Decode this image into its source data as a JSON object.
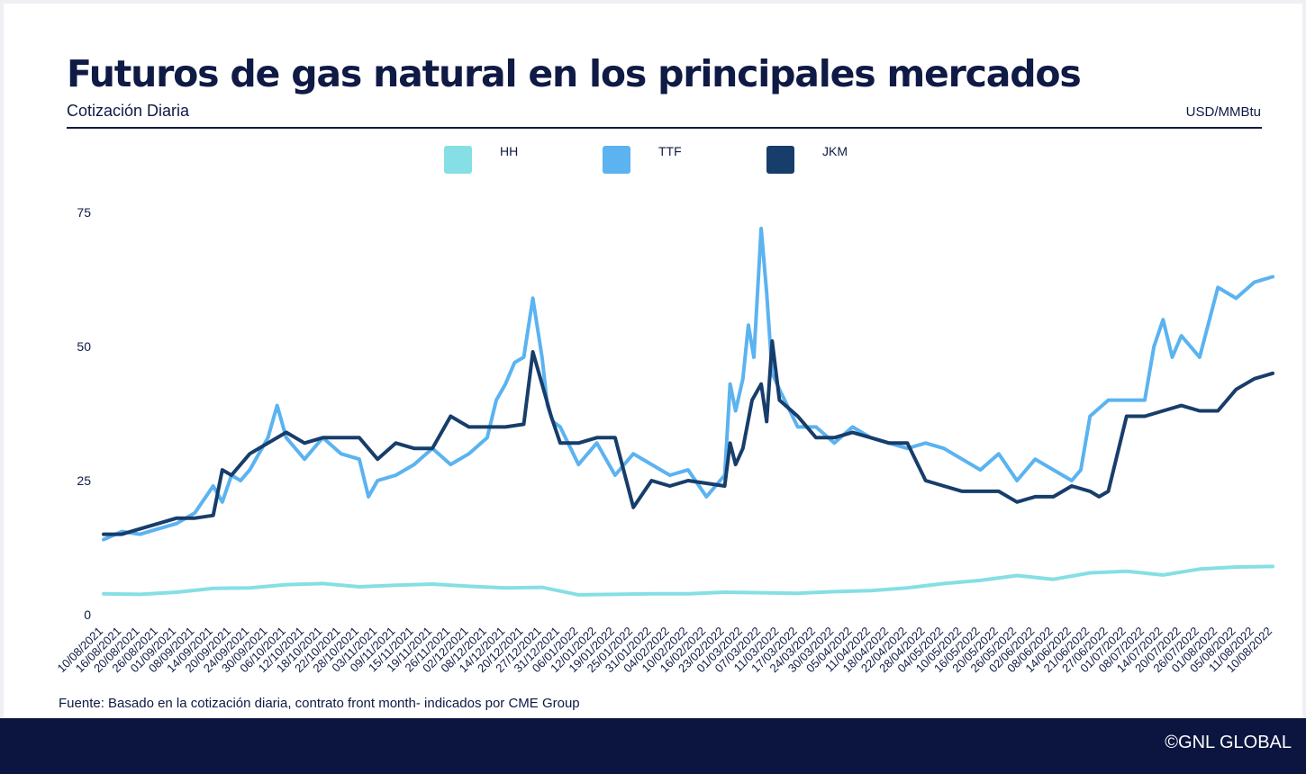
{
  "chart_data": {
    "type": "line",
    "title": "Futuros de gas natural en los principales mercados",
    "subtitle": "Cotización Diaria",
    "xlabel": "",
    "ylabel": "USD/MMBtu",
    "ylim": [
      0,
      75
    ],
    "yticks": [
      0,
      25,
      50,
      75
    ],
    "grid": false,
    "legend": "top-center",
    "x_ticks": [
      "10/08/2021",
      "16/08/2021",
      "20/08/2021",
      "26/08/2021",
      "01/09/2021",
      "08/09/2021",
      "14/09/2021",
      "20/09/2021",
      "24/09/2021",
      "30/09/2021",
      "06/10/2021",
      "12/10/2021",
      "18/10/2021",
      "22/10/2021",
      "28/10/2021",
      "03/11/2021",
      "09/11/2021",
      "15/11/2021",
      "19/11/2021",
      "26/11/2021",
      "02/12/2021",
      "08/12/2021",
      "14/12/2021",
      "20/12/2021",
      "27/12/2021",
      "31/12/2021",
      "06/01/2022",
      "12/01/2022",
      "19/01/2022",
      "25/01/2022",
      "31/01/2022",
      "04/02/2022",
      "10/02/2022",
      "16/02/2022",
      "23/02/2022",
      "01/03/2022",
      "07/03/2022",
      "11/03/2022",
      "17/03/2022",
      "24/03/2022",
      "30/03/2022",
      "05/04/2022",
      "11/04/2022",
      "18/04/2022",
      "22/04/2022",
      "28/04/2022",
      "04/05/2022",
      "10/05/2022",
      "16/05/2022",
      "20/05/2022",
      "26/05/2022",
      "02/06/2022",
      "08/06/2022",
      "14/06/2022",
      "21/06/2022",
      "27/06/2022",
      "01/07/2022",
      "08/07/2022",
      "14/07/2022",
      "20/07/2022",
      "26/07/2022",
      "01/08/2022",
      "05/08/2022",
      "11/08/2022",
      "10/08/2022"
    ],
    "series": [
      {
        "name": "HH",
        "color": "#85dfe4",
        "x": [
          0,
          2,
          4,
          6,
          8,
          10,
          12,
          14,
          16,
          18,
          20,
          22,
          24,
          26,
          28,
          30,
          32,
          34,
          36,
          38,
          40,
          42,
          44,
          46,
          48,
          50,
          52,
          54,
          56,
          58,
          60,
          62,
          64
        ],
        "y": [
          3.9,
          3.8,
          4.2,
          4.9,
          5.0,
          5.6,
          5.8,
          5.2,
          5.5,
          5.7,
          5.3,
          5.0,
          5.1,
          3.7,
          3.8,
          3.9,
          3.9,
          4.2,
          4.1,
          4.0,
          4.3,
          4.5,
          5.0,
          5.8,
          6.4,
          7.3,
          6.6,
          7.8,
          8.1,
          7.4,
          8.5,
          8.9,
          9.0
        ]
      },
      {
        "name": "TTF",
        "color": "#5bb3f0",
        "x": [
          0,
          1,
          2,
          3,
          4,
          5,
          6,
          6.5,
          7,
          7.5,
          8,
          9,
          9.5,
          10,
          11,
          12,
          13,
          14,
          14.5,
          15,
          16,
          17,
          18,
          19,
          20,
          21,
          21.5,
          22,
          22.5,
          23,
          23.5,
          24,
          24.3,
          24.6,
          25,
          26,
          27,
          28,
          29,
          30,
          31,
          32,
          33,
          34,
          34.3,
          34.6,
          35,
          35.3,
          35.6,
          36,
          36.3,
          36.6,
          37,
          38,
          39,
          40,
          41,
          42,
          43,
          44,
          45,
          46,
          47,
          48,
          49,
          50,
          51,
          52,
          53,
          53.5,
          54,
          55,
          56,
          57,
          57.5,
          58,
          58.5,
          59,
          60,
          61,
          62,
          63,
          64
        ],
        "y": [
          14,
          15.5,
          15,
          16,
          17,
          19,
          24,
          21,
          26,
          25,
          27,
          33,
          39,
          33,
          29,
          33,
          30,
          29,
          22,
          25,
          26,
          28,
          31,
          28,
          30,
          33,
          40,
          43,
          47,
          48,
          59,
          48,
          39,
          36,
          35,
          28,
          32,
          26,
          30,
          28,
          26,
          27,
          22,
          26,
          43,
          38,
          44,
          54,
          48,
          72,
          60,
          45,
          42,
          35,
          35,
          32,
          35,
          33,
          32,
          31,
          32,
          31,
          29,
          27,
          30,
          25,
          29,
          27,
          25,
          27,
          37,
          40,
          40,
          40,
          50,
          55,
          48,
          52,
          48,
          61,
          59,
          62,
          63
        ]
      },
      {
        "name": "JKM",
        "color": "#173d6b",
        "x": [
          0,
          1,
          2,
          3,
          4,
          5,
          6,
          6.5,
          7,
          8,
          9,
          10,
          11,
          12,
          13,
          14,
          15,
          16,
          17,
          18,
          19,
          20,
          21,
          22,
          23,
          23.5,
          24,
          24.5,
          25,
          26,
          27,
          28,
          29,
          30,
          31,
          32,
          33,
          34,
          34.3,
          34.6,
          35,
          35.5,
          36,
          36.3,
          36.6,
          37,
          38,
          39,
          40,
          41,
          42,
          43,
          44,
          45,
          46,
          47,
          48,
          49,
          50,
          51,
          52,
          53,
          54,
          54.5,
          55,
          56,
          57,
          58,
          59,
          60,
          61,
          62,
          63,
          64
        ],
        "y": [
          15,
          15,
          16,
          17,
          18,
          18,
          18.5,
          27,
          26,
          30,
          32,
          34,
          32,
          33,
          33,
          33,
          29,
          32,
          31,
          31,
          37,
          35,
          35,
          35,
          35.5,
          49,
          43,
          37,
          32,
          32,
          33,
          33,
          20,
          25,
          24,
          25,
          24.5,
          24,
          32,
          28,
          31,
          40,
          43,
          36,
          51,
          40,
          37,
          33,
          33,
          34,
          33,
          32,
          32,
          25,
          24,
          23,
          23,
          23,
          21,
          22,
          22,
          24,
          23,
          22,
          23,
          37,
          37,
          38,
          39,
          38,
          38,
          42,
          44,
          45
        ]
      }
    ]
  },
  "footer": {
    "source": "Fuente: Basado en la cotización diaria, contrato front month- indicados por CME Group",
    "brand": "©GNL GLOBAL"
  }
}
